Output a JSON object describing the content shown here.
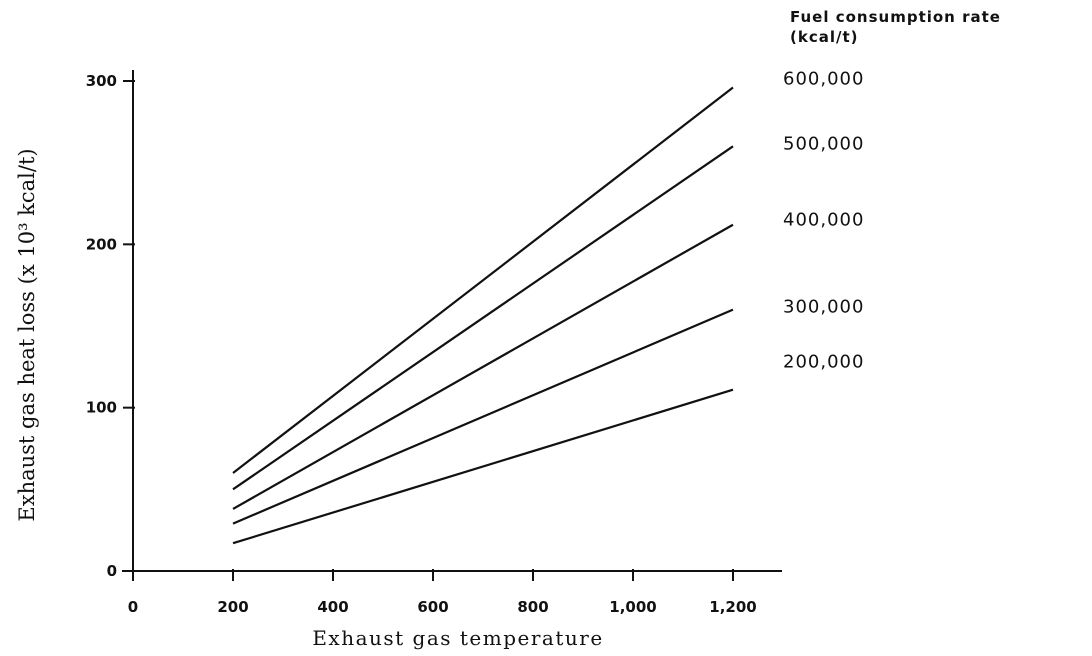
{
  "chart_data": {
    "type": "line",
    "title": "",
    "xlabel": "Exhaust gas temperature",
    "ylabel": "Exhaust gas heat loss (x 10³ kcal/t)",
    "xlim": [
      0,
      1200
    ],
    "ylim": [
      0,
      300
    ],
    "x_ticks": [
      {
        "value": 0,
        "label": "0"
      },
      {
        "value": 200,
        "label": "200"
      },
      {
        "value": 400,
        "label": "400"
      },
      {
        "value": 600,
        "label": "600"
      },
      {
        "value": 800,
        "label": "800"
      },
      {
        "value": 1000,
        "label": "1,000"
      },
      {
        "value": 1200,
        "label": "1,200"
      }
    ],
    "y_ticks": [
      {
        "value": 0,
        "label": "0"
      },
      {
        "value": 100,
        "label": "100"
      },
      {
        "value": 200,
        "label": "200"
      },
      {
        "value": 300,
        "label": "300"
      }
    ],
    "grid": false,
    "legend": {
      "title_line1": "Fuel consumption rate",
      "title_line2": "(kcal/t)",
      "placement": "top-right"
    },
    "series": [
      {
        "name": "600,000",
        "x": [
          200,
          1200
        ],
        "y": [
          60,
          296
        ]
      },
      {
        "name": "500,000",
        "x": [
          200,
          1200
        ],
        "y": [
          50,
          260
        ]
      },
      {
        "name": "400,000",
        "x": [
          200,
          1200
        ],
        "y": [
          38,
          212
        ]
      },
      {
        "name": "300,000",
        "x": [
          200,
          1200
        ],
        "y": [
          29,
          160
        ]
      },
      {
        "name": "200,000",
        "x": [
          200,
          1200
        ],
        "y": [
          17,
          111
        ]
      }
    ],
    "colors": {
      "line": "#111111",
      "axis": "#111111"
    }
  }
}
